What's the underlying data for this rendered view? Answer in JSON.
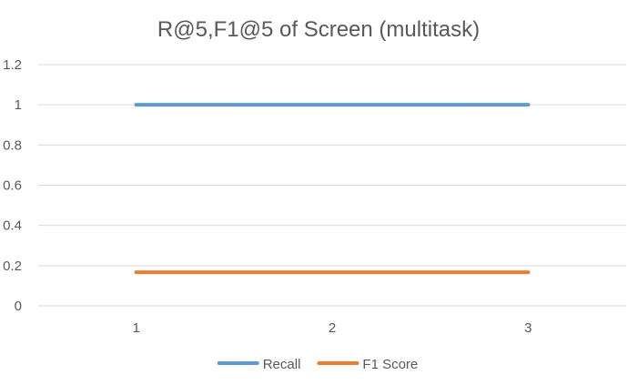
{
  "chart_data": {
    "type": "line",
    "title": "R@5,F1@5 of Screen (multitask)",
    "xlabel": "",
    "ylabel": "",
    "x": [
      1,
      2,
      3
    ],
    "x_tick_labels": [
      "1",
      "2",
      "3"
    ],
    "ylim": [
      0,
      1.2
    ],
    "y_ticks": [
      0,
      0.2,
      0.4,
      0.6,
      0.8,
      1,
      1.2
    ],
    "y_tick_labels": [
      "0",
      "0.2",
      "0.4",
      "0.6",
      "0.8",
      "1",
      "1.2"
    ],
    "grid": true,
    "legend_position": "bottom",
    "series": [
      {
        "name": "Recall",
        "values": [
          1,
          1,
          1
        ],
        "color": "#5b9bd5"
      },
      {
        "name": "F1 Score",
        "values": [
          0.167,
          0.167,
          0.167
        ],
        "color": "#ed7d31"
      }
    ]
  }
}
